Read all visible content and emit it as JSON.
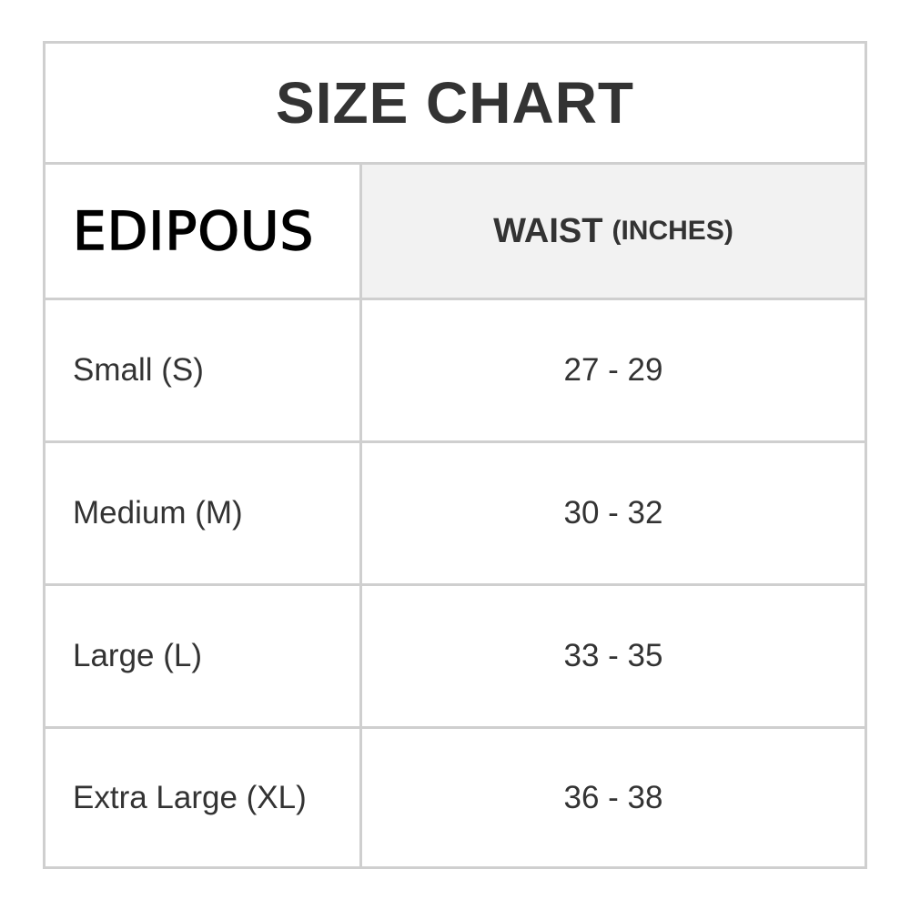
{
  "title": "SIZE CHART",
  "brand_logo_text": "EDIPOUS",
  "header": {
    "column": "WAIST",
    "unit": "(INCHES)"
  },
  "rows": [
    {
      "size": "Small (S)",
      "waist": "27 - 29"
    },
    {
      "size": "Medium (M)",
      "waist": "30 - 32"
    },
    {
      "size": "Large (L)",
      "waist": "33 - 35"
    },
    {
      "size": "Extra Large (XL)",
      "waist": "36 - 38"
    }
  ],
  "colors": {
    "border": "#cfcfcf",
    "header_bg": "#f2f2f2",
    "text": "#333333"
  }
}
